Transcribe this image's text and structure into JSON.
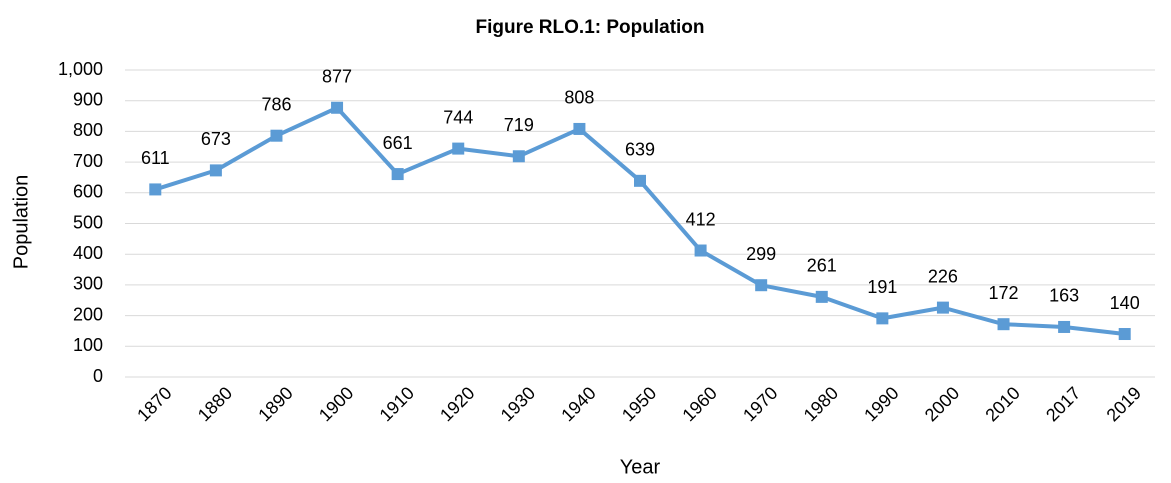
{
  "chart_data": {
    "type": "line",
    "title": "Figure RLO.1: Population",
    "x_label": "Year",
    "y_label": "Population",
    "categories": [
      "1870",
      "1880",
      "1890",
      "1900",
      "1910",
      "1920",
      "1930",
      "1940",
      "1950",
      "1960",
      "1970",
      "1980",
      "1990",
      "2000",
      "2010",
      "2017",
      "2019"
    ],
    "series": [
      {
        "name": "Population",
        "color": "#5b9bd5",
        "values": [
          611,
          673,
          786,
          877,
          661,
          744,
          719,
          808,
          639,
          412,
          299,
          261,
          191,
          226,
          172,
          163,
          140
        ]
      }
    ],
    "ylim": [
      0,
      1000
    ],
    "yticks": [
      0,
      100,
      200,
      300,
      400,
      500,
      600,
      700,
      800,
      900,
      {
        "value": 1000,
        "label": "1,000"
      }
    ],
    "grid": true
  }
}
